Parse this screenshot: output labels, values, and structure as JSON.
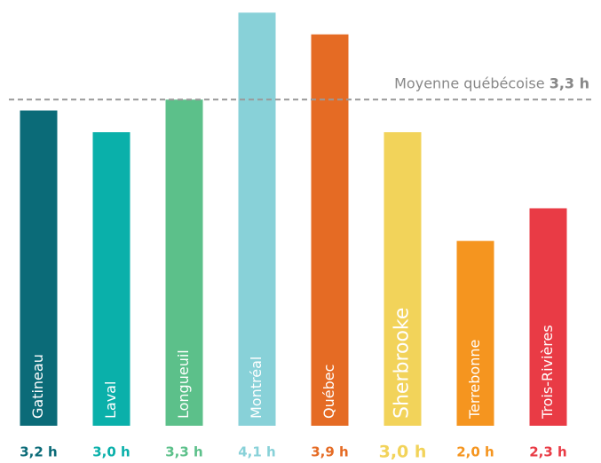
{
  "chart_data": {
    "type": "bar",
    "categories": [
      "Gatineau",
      "Laval",
      "Longueuil",
      "Montréal",
      "Québec",
      "Sherbrooke",
      "Terrebonne",
      "Trois-Rivières"
    ],
    "values": [
      3.2,
      3.0,
      3.3,
      4.1,
      3.9,
      3.0,
      2.0,
      2.3
    ],
    "value_labels": [
      "3,2 h",
      "3,0 h",
      "3,3 h",
      "4,1 h",
      "3,9 h",
      "3,0 h",
      "2,0 h",
      "2,3 h"
    ],
    "colors": [
      "#0b6b78",
      "#0ab0aa",
      "#5cc08a",
      "#88d1d8",
      "#e56b24",
      "#f2d35a",
      "#f5951f",
      "#e93b45"
    ],
    "ylim": [
      0.3,
      4.2
    ],
    "average": {
      "label": "Moyenne québécoise",
      "value": 3.3,
      "value_label": "3,3 h"
    }
  }
}
